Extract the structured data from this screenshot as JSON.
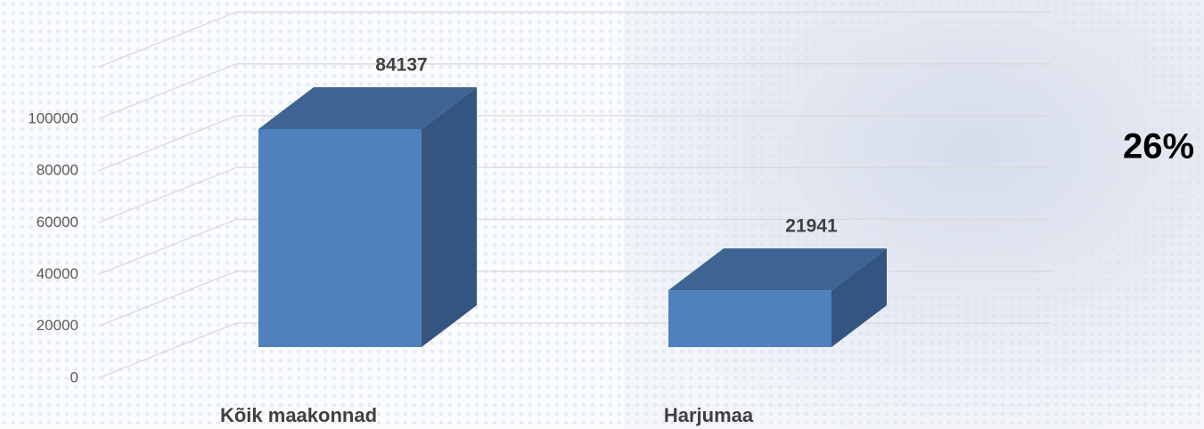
{
  "chart_data": {
    "type": "bar3d",
    "annotation": "26%",
    "categories": [
      "Kõik maakonnad",
      "Harjumaa"
    ],
    "values": [
      84137,
      21941
    ],
    "color": "#4f81bd",
    "ylim": [
      0,
      120000
    ],
    "yticks": [
      0,
      20000,
      40000,
      60000,
      80000,
      100000
    ],
    "grid": true
  }
}
